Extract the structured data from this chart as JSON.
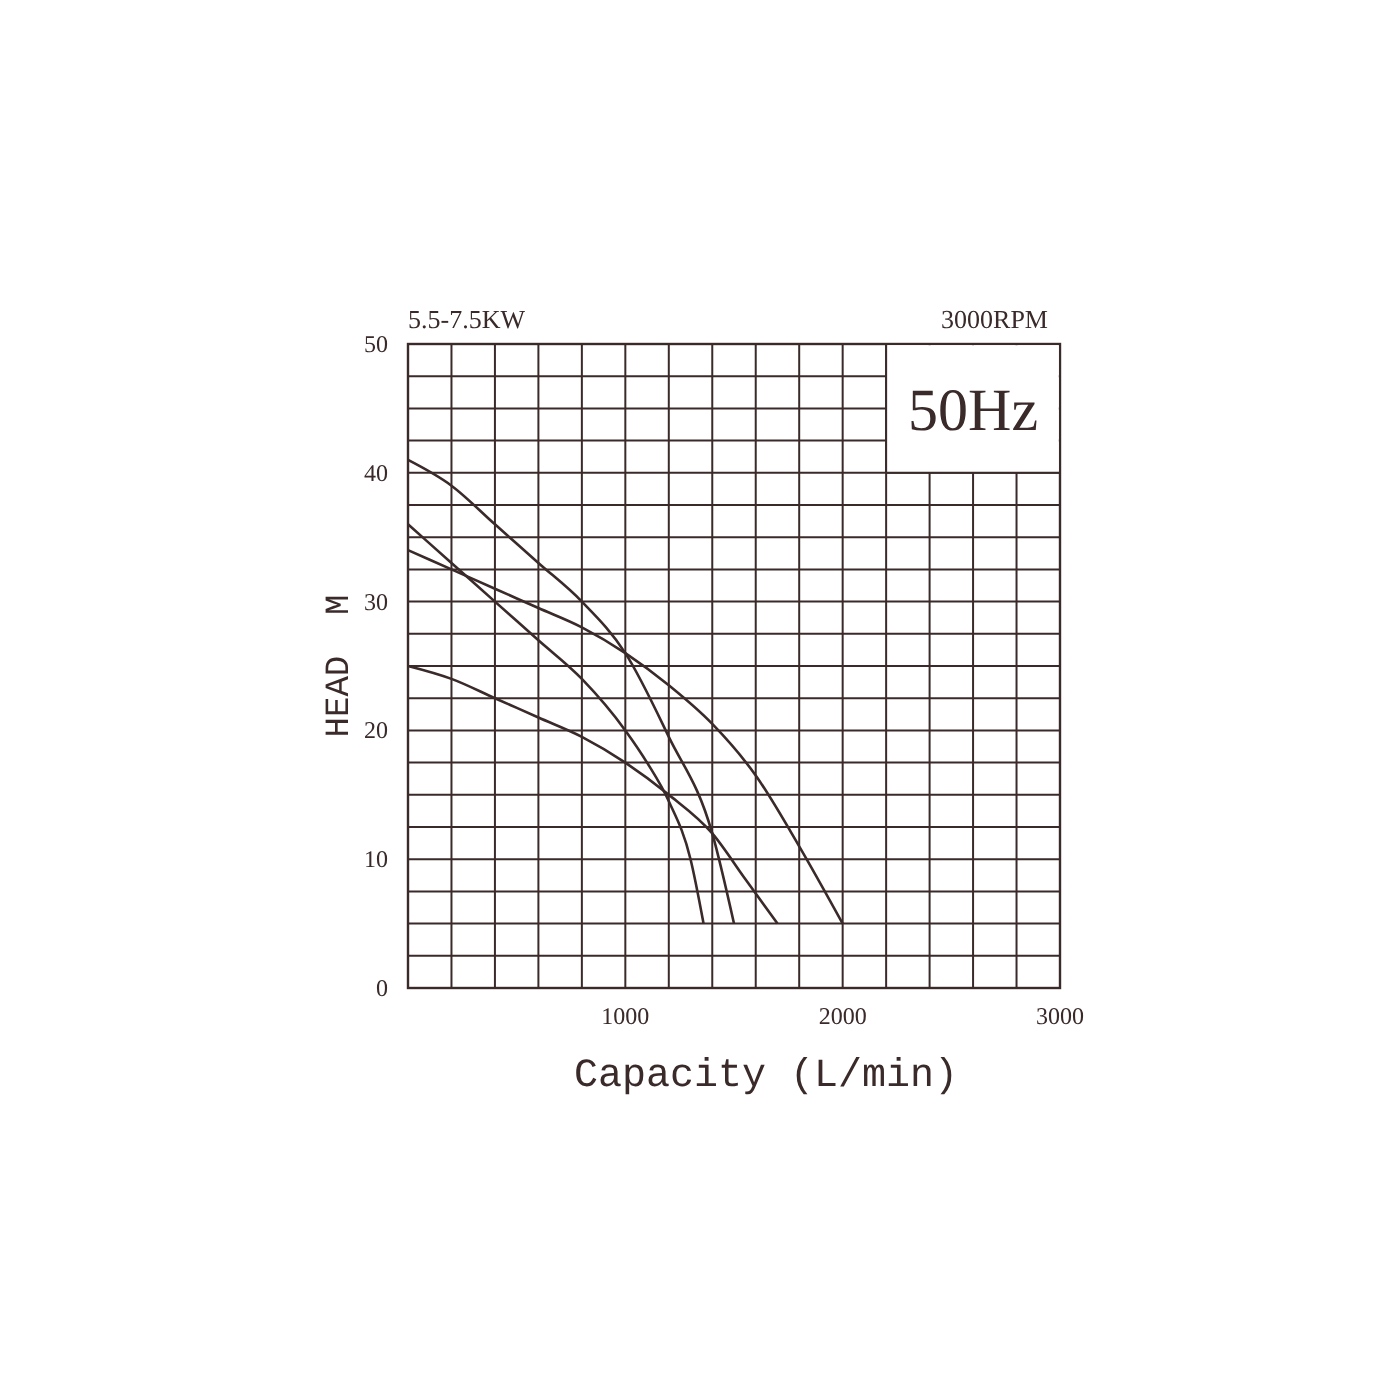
{
  "chart_data": {
    "type": "line",
    "xlabel": "Capacity (L/min)",
    "ylabel": "HEAD  M",
    "annotations": [
      "5.5-7.5KW",
      "3000RPM",
      "50Hz"
    ],
    "xlim": [
      0,
      3000
    ],
    "ylim": [
      0,
      50
    ],
    "xticks": [
      1000,
      2000,
      3000
    ],
    "yticks": [
      0,
      10,
      20,
      30,
      40,
      50
    ],
    "grid": true,
    "line_style": "solid",
    "marker": "none",
    "series": [
      {
        "color": "#3a2a2a",
        "x": [
          0,
          200,
          400,
          600,
          800,
          1000,
          1200,
          1400,
          1500
        ],
        "values": [
          41,
          39,
          36,
          33,
          30,
          26,
          19.5,
          12,
          5
        ]
      },
      {
        "color": "#3a2a2a",
        "x": [
          0,
          200,
          400,
          600,
          800,
          1000,
          1100,
          1200,
          1300,
          1360
        ],
        "values": [
          36,
          33,
          30,
          27,
          24,
          20,
          17.5,
          14.5,
          10,
          5
        ]
      },
      {
        "color": "#3a2a2a",
        "x": [
          0,
          200,
          400,
          600,
          800,
          1000,
          1200,
          1400,
          1600,
          1800,
          2000
        ],
        "values": [
          34,
          32.5,
          31,
          29.5,
          28,
          26,
          23.5,
          20.5,
          16.5,
          11,
          5
        ]
      },
      {
        "color": "#3a2a2a",
        "x": [
          0,
          200,
          400,
          600,
          800,
          1000,
          1200,
          1400,
          1550,
          1700
        ],
        "values": [
          25,
          24,
          22.5,
          21,
          19.5,
          17.5,
          15,
          12,
          8.5,
          5
        ]
      }
    ]
  }
}
